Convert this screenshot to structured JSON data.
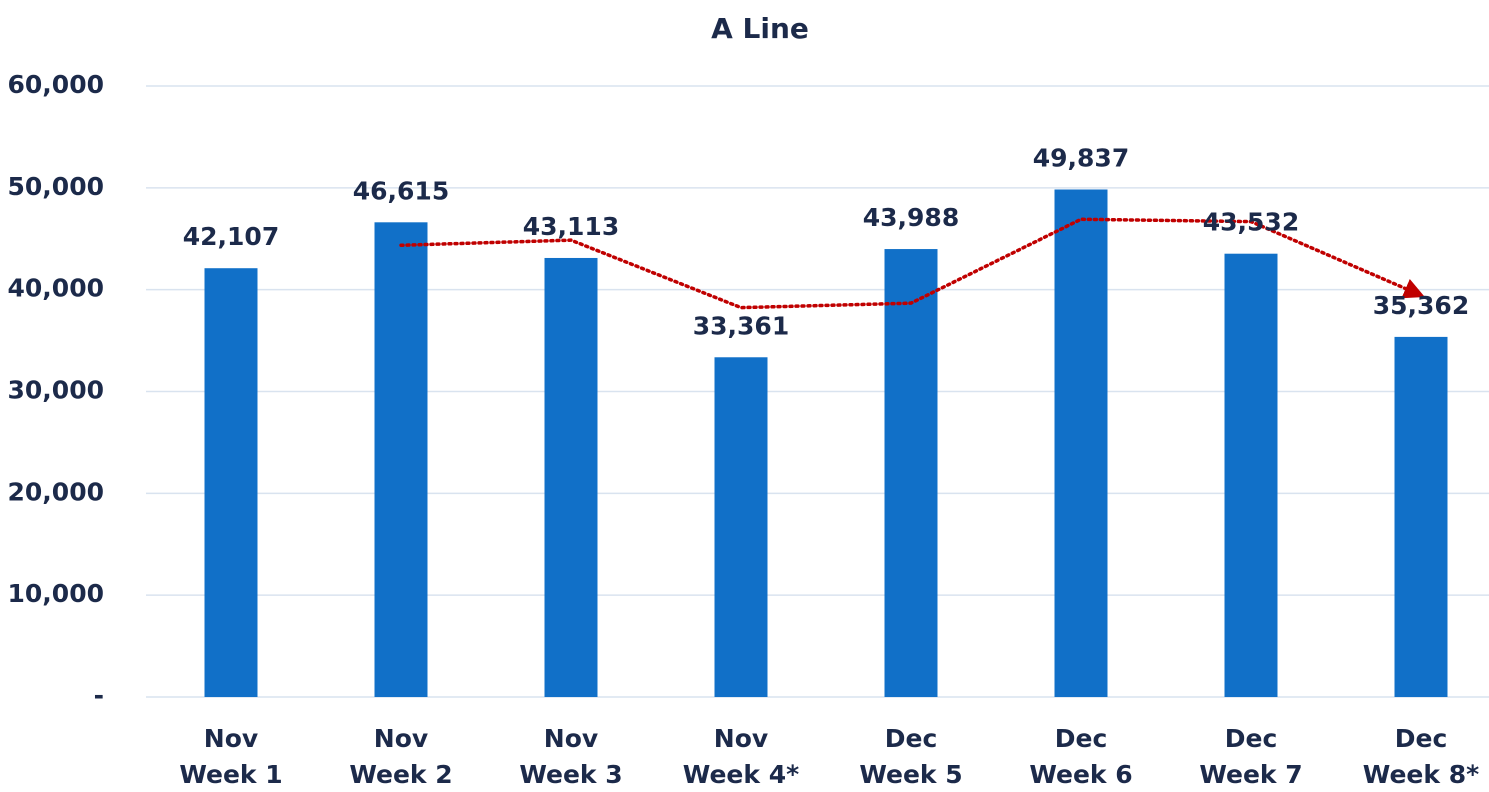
{
  "chart_data": {
    "type": "bar",
    "title": "A Line",
    "categories": [
      [
        "Nov",
        "Week 1"
      ],
      [
        "Nov",
        "Week 2"
      ],
      [
        "Nov",
        "Week 3"
      ],
      [
        "Nov",
        "Week 4*"
      ],
      [
        "Dec",
        "Week 5"
      ],
      [
        "Dec",
        "Week 6"
      ],
      [
        "Dec",
        "Week 7"
      ],
      [
        "Dec",
        "Week 8*"
      ]
    ],
    "values": [
      42107,
      46615,
      43113,
      33361,
      43988,
      49837,
      43532,
      35362
    ],
    "value_labels": [
      "42,107",
      "46,615",
      "43,113",
      "33,361",
      "43,988",
      "49,837",
      "43,532",
      "35,362"
    ],
    "color": "#1170c8",
    "trendline": {
      "color": "#c00000",
      "values": [
        null,
        44361,
        44864,
        38237,
        38675,
        46913,
        46685,
        39447
      ]
    },
    "ylim": [
      0,
      60000
    ],
    "yticks": [
      {
        "value": 0,
        "label": "-"
      },
      {
        "value": 10000,
        "label": "10,000"
      },
      {
        "value": 20000,
        "label": "20,000"
      },
      {
        "value": 30000,
        "label": "30,000"
      },
      {
        "value": 40000,
        "label": "40,000"
      },
      {
        "value": 50000,
        "label": "50,000"
      },
      {
        "value": 60000,
        "label": "60,000"
      }
    ],
    "grid": true
  }
}
